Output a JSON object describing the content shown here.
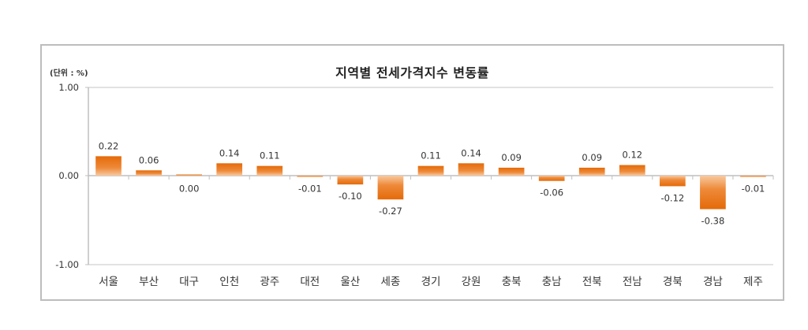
{
  "chart_data": {
    "type": "bar",
    "title": "지역별 전세가격지수 변동률",
    "unit_label": "(단위 : %)",
    "xlabel": "",
    "ylabel": "",
    "ylim": [
      -1.0,
      1.0
    ],
    "yticks": [
      "1.00",
      "0.00",
      "-1.00"
    ],
    "grid": false,
    "legend": null,
    "bar_color": "#e8700f",
    "categories": [
      "서울",
      "부산",
      "대구",
      "인천",
      "광주",
      "대전",
      "울산",
      "세종",
      "경기",
      "강원",
      "충북",
      "충남",
      "전북",
      "전남",
      "경북",
      "경남",
      "제주"
    ],
    "values": [
      0.22,
      0.06,
      0.0,
      0.14,
      0.11,
      -0.01,
      -0.1,
      -0.27,
      0.11,
      0.14,
      0.09,
      -0.06,
      0.09,
      0.12,
      -0.12,
      -0.38,
      -0.01
    ],
    "value_labels": [
      "0.22",
      "0.06",
      "0.00",
      "0.14",
      "0.11",
      "-0.01",
      "-0.10",
      "-0.27",
      "0.11",
      "0.14",
      "0.09",
      "-0.06",
      "0.09",
      "0.12",
      "-0.12",
      "-0.38",
      "-0.01"
    ]
  }
}
